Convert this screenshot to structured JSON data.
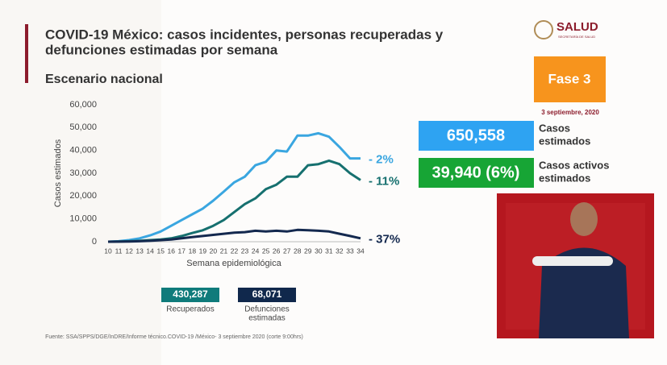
{
  "header": {
    "title_lines": [
      "COVID-19 México: casos incidentes, personas recuperadas y",
      "defunciones estimadas por semana"
    ],
    "subtitle": "Escenario nacional"
  },
  "logo": {
    "name": "SALUD",
    "tagline": "SECRETARÍA DE SALUD"
  },
  "phase": {
    "label": "Fase 3",
    "date": "3 septiembre, 2020"
  },
  "stats": [
    {
      "value": "650,558",
      "label_lines": [
        "Casos",
        "estimados"
      ],
      "color": "#2ea3f2"
    },
    {
      "value": "39,940 (6%)",
      "label_lines": [
        "Casos activos",
        "estimados"
      ],
      "color": "#17a535"
    }
  ],
  "chart_data": {
    "type": "line",
    "ylabel": "Casos estimados",
    "xlabel": "Semana epidemiológica",
    "x": [
      10,
      11,
      12,
      13,
      14,
      15,
      16,
      17,
      18,
      19,
      20,
      21,
      22,
      23,
      24,
      25,
      26,
      27,
      28,
      29,
      30,
      31,
      32,
      33,
      34
    ],
    "xlim": [
      10,
      34
    ],
    "xticks": [
      10,
      11,
      12,
      13,
      14,
      15,
      16,
      17,
      18,
      19,
      20,
      21,
      22,
      23,
      24,
      25,
      26,
      27,
      28,
      29,
      30,
      31,
      32,
      33,
      34
    ],
    "ylim": [
      0,
      60000
    ],
    "yticks": [
      0,
      {
        "value": 10000,
        "label": "10,000"
      },
      {
        "value": 20000,
        "label": "20,000"
      },
      {
        "value": 30000,
        "label": "30,000"
      },
      {
        "value": 40000,
        "label": "40,000"
      },
      {
        "value": 50000,
        "label": "50,000"
      },
      {
        "value": 60000,
        "label": "60,000"
      }
    ],
    "grid": false,
    "series": [
      {
        "color": "#3aa6e0",
        "end_label": "- 2%",
        "values": [
          0,
          200,
          700,
          1500,
          2800,
          4500,
          7000,
          9500,
          12000,
          14500,
          18000,
          22000,
          26000,
          28500,
          33500,
          35000,
          40000,
          39500,
          46500,
          46500,
          47500,
          46000,
          41500,
          36500,
          36500
        ]
      },
      {
        "color": "#16706f",
        "end_label": "- 11%",
        "values": [
          0,
          100,
          200,
          400,
          700,
          1000,
          1500,
          2500,
          3800,
          5000,
          7000,
          9500,
          13000,
          16500,
          19000,
          23000,
          25000,
          28500,
          28500,
          33500,
          34000,
          35500,
          34000,
          30000,
          27000
        ]
      },
      {
        "color": "#14294f",
        "end_label": "- 37%",
        "values": [
          0,
          50,
          100,
          200,
          400,
          700,
          1000,
          1500,
          2000,
          2500,
          3000,
          3500,
          4000,
          4200,
          4800,
          4500,
          4800,
          4500,
          5200,
          5000,
          4800,
          4500,
          3500,
          2500,
          1500
        ]
      }
    ],
    "summary": [
      {
        "value": "430,287",
        "label_lines": [
          "Recuperados"
        ],
        "color": "#0f7b7b"
      },
      {
        "value": "68,071",
        "label_lines": [
          "Defunciones",
          "estimadas"
        ],
        "color": "#10284c"
      }
    ]
  },
  "footer": "Fuente: SSA/SPPS/DGE/InDRE/Informe técnico.COVID-19 /México- 3 septiembre 2020 (corte 9:00hrs)"
}
